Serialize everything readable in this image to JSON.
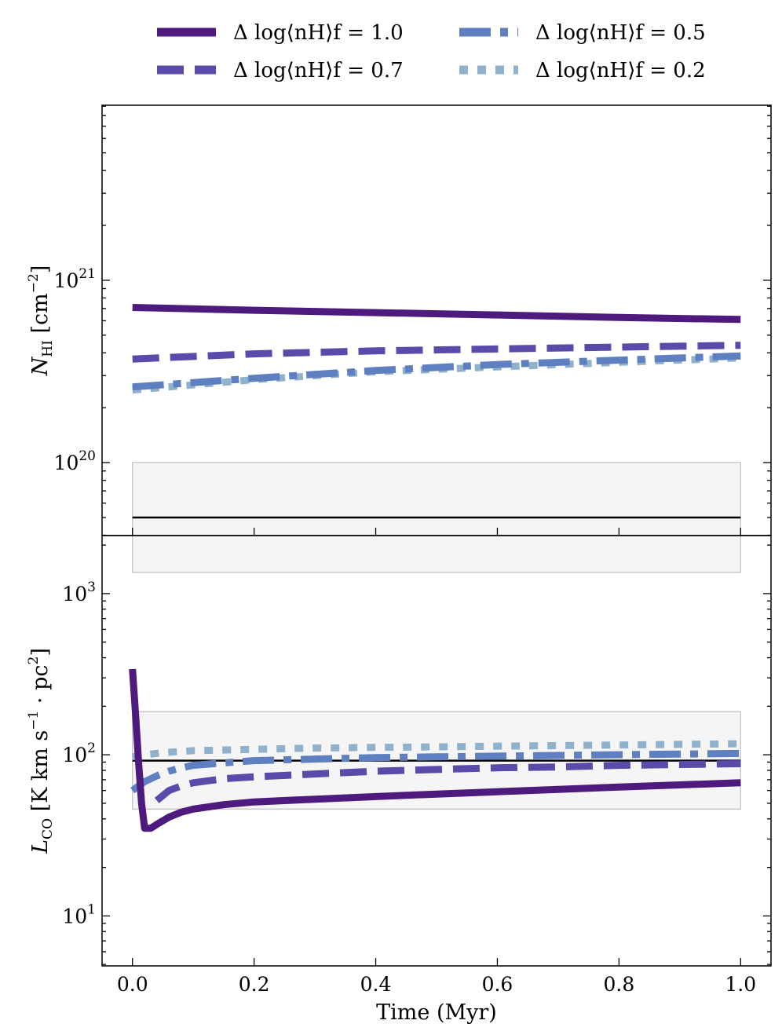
{
  "chart_data": {
    "type": "line",
    "legend": {
      "placement": "top",
      "entries": [
        {
          "label": "Δ log⟨nH⟩f = 1.0",
          "color": "#4f1a7d",
          "style": "solid"
        },
        {
          "label": "Δ log⟨nH⟩f = 0.5",
          "color": "#5e7fc0",
          "style": "dashdot"
        },
        {
          "label": "Δ log⟨nH⟩f = 0.7",
          "color": "#5a4aaa",
          "style": "dashed"
        },
        {
          "label": "Δ log⟨nH⟩f = 0.2",
          "color": "#8fb1cc",
          "style": "dotted"
        }
      ]
    },
    "xlabel": "Time (Myr)",
    "xlim": [
      -0.05,
      1.05
    ],
    "xticks": [
      "0.0",
      "0.2",
      "0.4",
      "0.6",
      "0.8",
      "1.0"
    ],
    "panels": [
      {
        "ylabel_main": "N",
        "ylabel_sub": "HI",
        "ylabel_unit": "[cm",
        "ylabel_unit_sup": "−2",
        "ylabel_unit_end": "]",
        "yscale": "log",
        "ylim_log10": [
          19.6,
          21.96
        ],
        "yticks": [
          {
            "base": "10",
            "exp": "20"
          },
          {
            "base": "10",
            "exp": "21"
          }
        ],
        "observed": {
          "value": 5e+19,
          "band_low": 2.5e+19,
          "band_high": 1e+20
        },
        "series": [
          {
            "name": "Δ log⟨nH⟩f = 1.0",
            "color": "#4f1a7d",
            "style": "solid",
            "x": [
              0.0,
              0.2,
              0.4,
              0.6,
              0.8,
              1.0
            ],
            "y": [
              7.1e+20,
              6.85e+20,
              6.65e+20,
              6.45e+20,
              6.25e+20,
              6.1e+20
            ]
          },
          {
            "name": "Δ log⟨nH⟩f = 0.7",
            "color": "#5a4aaa",
            "style": "dashed",
            "x": [
              0.0,
              0.2,
              0.4,
              0.6,
              0.8,
              1.0
            ],
            "y": [
              3.7e+20,
              3.95e+20,
              4.1e+20,
              4.2e+20,
              4.3e+20,
              4.4e+20
            ]
          },
          {
            "name": "Δ log⟨nH⟩f = 0.5",
            "color": "#5e7fc0",
            "style": "dashdot",
            "x": [
              0.0,
              0.2,
              0.4,
              0.6,
              0.8,
              1.0
            ],
            "y": [
              2.6e+20,
              2.9e+20,
              3.2e+20,
              3.45e+20,
              3.65e+20,
              3.85e+20
            ]
          },
          {
            "name": "Δ log⟨nH⟩f = 0.2",
            "color": "#8fb1cc",
            "style": "dotted",
            "x": [
              0.0,
              0.2,
              0.4,
              0.6,
              0.8,
              1.0
            ],
            "y": [
              2.5e+20,
              2.85e+20,
              3.15e+20,
              3.35e+20,
              3.55e+20,
              3.75e+20
            ]
          }
        ]
      },
      {
        "ylabel_main": "L",
        "ylabel_sub": "CO",
        "ylabel_unit": "[K km s",
        "ylabel_unit_sup": "−1",
        "ylabel_unit_mid": " · pc",
        "ylabel_unit_sup2": "2",
        "ylabel_unit_end": "]",
        "yscale": "log",
        "ylim_log10": [
          0.69,
          3.36
        ],
        "yticks": [
          {
            "base": "10",
            "exp": "1"
          },
          {
            "base": "10",
            "exp": "2"
          },
          {
            "base": "10",
            "exp": "3"
          }
        ],
        "observed": {
          "value": 92,
          "band_low": 46,
          "band_high": 185
        },
        "series": [
          {
            "name": "Δ log⟨nH⟩f = 1.0",
            "color": "#4f1a7d",
            "style": "solid",
            "x": [
              0.0,
              0.005,
              0.01,
              0.015,
              0.02,
              0.03,
              0.04,
              0.06,
              0.08,
              0.1,
              0.15,
              0.2,
              0.3,
              0.4,
              0.5,
              0.6,
              0.7,
              0.8,
              0.9,
              1.0
            ],
            "y": [
              340,
              180,
              90,
              50,
              35,
              35,
              37,
              41,
              44,
              46,
              49,
              51,
              53,
              55,
              57,
              59,
              61,
              63,
              65,
              67
            ]
          },
          {
            "name": "Δ log⟨nH⟩f = 0.7",
            "color": "#5a4aaa",
            "style": "dashed",
            "x": [
              0.04,
              0.06,
              0.08,
              0.1,
              0.15,
              0.2,
              0.3,
              0.4,
              0.5,
              0.6,
              0.7,
              0.8,
              0.9,
              1.0
            ],
            "y": [
              52,
              60,
              64,
              67,
              71,
              73,
              76,
              79,
              81,
              83,
              84,
              86,
              87,
              88
            ]
          },
          {
            "name": "Δ log⟨nH⟩f = 0.5",
            "color": "#5e7fc0",
            "style": "dashdot",
            "x": [
              0.0,
              0.01,
              0.02,
              0.04,
              0.06,
              0.08,
              0.1,
              0.15,
              0.2,
              0.3,
              0.4,
              0.5,
              0.6,
              0.7,
              0.8,
              0.9,
              1.0
            ],
            "y": [
              60,
              64,
              68,
              74,
              79,
              83,
              86,
              89,
              92,
              94,
              96,
              97,
              98,
              99,
              100,
              101,
              102
            ]
          },
          {
            "name": "Δ log⟨nH⟩f = 0.2",
            "color": "#8fb1cc",
            "style": "dotted",
            "x": [
              0.0,
              0.02,
              0.05,
              0.1,
              0.2,
              0.3,
              0.4,
              0.5,
              0.6,
              0.7,
              0.8,
              0.9,
              1.0
            ],
            "y": [
              97,
              100,
              103,
              106,
              108,
              110,
              111,
              112,
              113,
              114,
              115,
              116,
              117
            ]
          }
        ]
      }
    ]
  }
}
